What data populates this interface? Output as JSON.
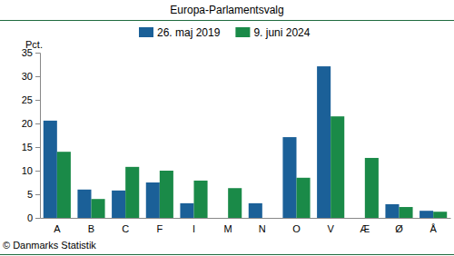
{
  "chart_data": {
    "type": "bar",
    "title": "Europa-Parlamentsvalg",
    "y_label": "Pct.",
    "source": "© Danmarks Statistik",
    "categories": [
      "A",
      "B",
      "C",
      "F",
      "I",
      "M",
      "N",
      "O",
      "V",
      "Æ",
      "Ø",
      "Å"
    ],
    "series": [
      {
        "name": "26. maj 2019",
        "color": "#1b6098",
        "values": [
          20.6,
          6.0,
          5.8,
          7.5,
          3.1,
          null,
          3.1,
          17.1,
          32.1,
          null,
          2.9,
          1.5
        ]
      },
      {
        "name": "9. juni 2024",
        "color": "#1a8a48",
        "values": [
          14.0,
          4.0,
          10.8,
          10.0,
          7.9,
          6.3,
          null,
          8.5,
          21.5,
          12.7,
          2.3,
          1.3
        ]
      }
    ],
    "ylim": [
      0,
      35
    ],
    "yticks": [
      0,
      5,
      10,
      15,
      20,
      25,
      30,
      35
    ],
    "grid": false,
    "legend": "top"
  }
}
